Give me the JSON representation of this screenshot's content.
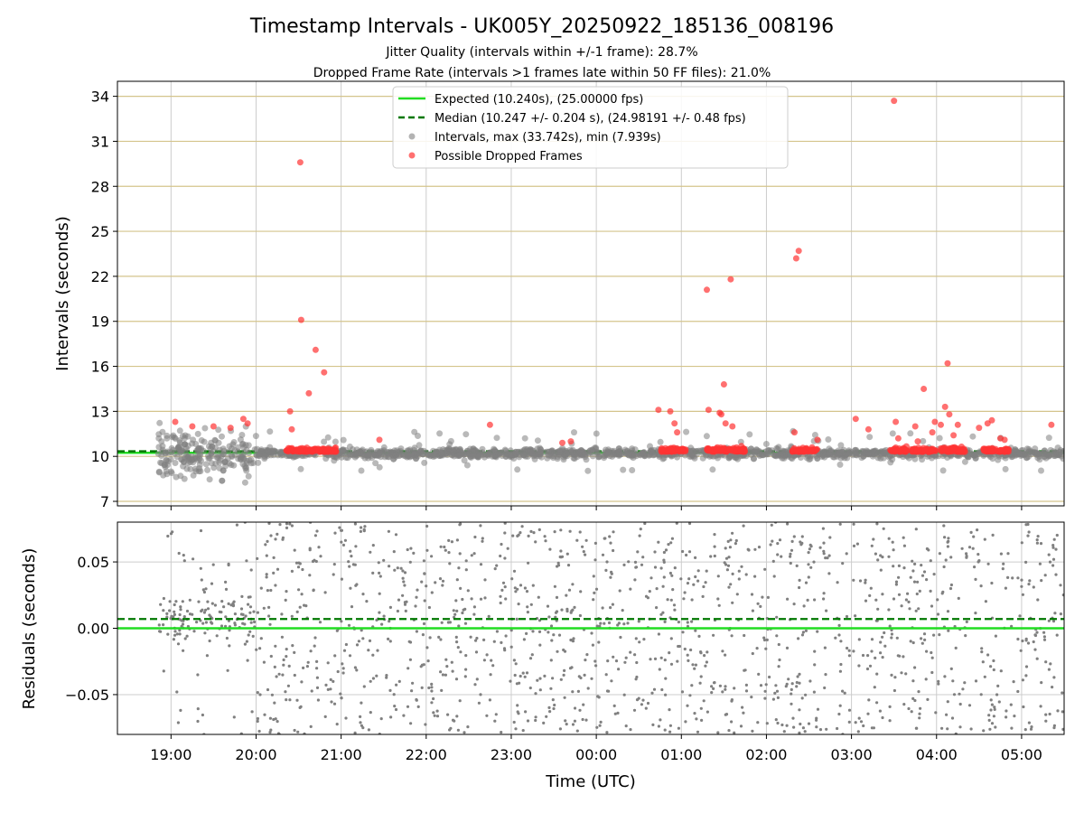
{
  "chart_data": [
    {
      "type": "scatter",
      "title": "Timestamp Intervals - UK005Y_20250922_185136_008196",
      "subtitle_lines": [
        "Jitter Quality (intervals within +/-1 frame): 28.7%",
        "Dropped Frame Rate (intervals >1 frames late within 50 FF files): 21.0%"
      ],
      "ylabel": "Intervals (seconds)",
      "ylim": [
        6.7,
        35.0
      ],
      "yticks": [
        7,
        10,
        13,
        16,
        19,
        22,
        25,
        28,
        31,
        34
      ],
      "ytick_labels": [
        "7",
        "10",
        "13",
        "16",
        "19",
        "22",
        "25",
        "28",
        "31",
        "34"
      ],
      "xlim_hours": [
        18.37,
        29.5
      ],
      "grid": true,
      "legend_position": "top-center",
      "expected_interval": 10.24,
      "median_interval": 10.247,
      "legend": [
        {
          "label": "Expected (10.240s), (25.00000 fps)",
          "kind": "solid-line",
          "color": "#22dd22"
        },
        {
          "label": "Median (10.247 +/- 0.204 s), (24.98191 +/- 0.48 fps)",
          "kind": "dashed-line",
          "color": "#007700"
        },
        {
          "label": "Intervals, max (33.742s), min (7.939s)",
          "kind": "dot",
          "color": "#808080"
        },
        {
          "label": "Possible Dropped Frames",
          "kind": "dot",
          "color": "#ff3333"
        }
      ],
      "series": [
        {
          "name": "Intervals, max (33.742s), min (7.939s)",
          "color": "#808080",
          "description": "dense band of intervals around 10.2 s from 18:50 to 05:30 UTC, wider scatter 8-12 s before 20:00"
        },
        {
          "name": "Possible Dropped Frames",
          "color": "#ff3333",
          "points": [
            [
              20.52,
              29.6
            ],
            [
              20.53,
              19.1
            ],
            [
              20.62,
              14.2
            ],
            [
              20.7,
              17.1
            ],
            [
              20.8,
              15.6
            ],
            [
              20.4,
              13.0
            ],
            [
              20.42,
              11.8
            ],
            [
              19.05,
              12.3
            ],
            [
              19.25,
              12.0
            ],
            [
              19.5,
              12.0
            ],
            [
              19.7,
              11.9
            ],
            [
              19.85,
              12.5
            ],
            [
              19.9,
              12.2
            ],
            [
              21.45,
              11.1
            ],
            [
              22.75,
              12.1
            ],
            [
              23.6,
              10.9
            ],
            [
              23.7,
              11.0
            ],
            [
              24.73,
              13.1
            ],
            [
              24.87,
              13.0
            ],
            [
              24.92,
              12.2
            ],
            [
              24.95,
              11.6
            ],
            [
              25.3,
              21.1
            ],
            [
              25.32,
              13.1
            ],
            [
              25.45,
              12.9
            ],
            [
              25.47,
              12.8
            ],
            [
              25.5,
              14.8
            ],
            [
              25.52,
              12.2
            ],
            [
              25.58,
              21.8
            ],
            [
              25.6,
              12.0
            ],
            [
              26.35,
              23.2
            ],
            [
              26.38,
              23.7
            ],
            [
              26.33,
              11.6
            ],
            [
              26.6,
              11.1
            ],
            [
              27.05,
              12.5
            ],
            [
              27.2,
              11.8
            ],
            [
              27.5,
              33.7
            ],
            [
              27.52,
              12.3
            ],
            [
              27.55,
              11.2
            ],
            [
              27.75,
              12.0
            ],
            [
              27.78,
              11.0
            ],
            [
              27.85,
              14.5
            ],
            [
              27.95,
              11.6
            ],
            [
              27.98,
              12.3
            ],
            [
              28.05,
              12.1
            ],
            [
              28.1,
              13.3
            ],
            [
              28.13,
              16.2
            ],
            [
              28.15,
              12.8
            ],
            [
              28.2,
              11.4
            ],
            [
              28.25,
              12.1
            ],
            [
              28.5,
              11.9
            ],
            [
              28.6,
              12.2
            ],
            [
              28.65,
              12.4
            ],
            [
              28.75,
              11.2
            ],
            [
              28.8,
              11.1
            ],
            [
              29.35,
              12.1
            ]
          ],
          "clusters": [
            [
              20.35,
              20.95
            ],
            [
              24.75,
              25.05
            ],
            [
              25.3,
              25.75
            ],
            [
              26.3,
              26.6
            ],
            [
              27.45,
              27.65
            ],
            [
              27.7,
              28.0
            ],
            [
              28.05,
              28.35
            ],
            [
              28.55,
              28.85
            ]
          ]
        }
      ]
    },
    {
      "type": "scatter",
      "xlabel": "Time (UTC)",
      "ylabel": "Residuals (seconds)",
      "ylim": [
        -0.08,
        0.08
      ],
      "yticks": [
        -0.05,
        0.0,
        0.05
      ],
      "ytick_labels": [
        "−0.05",
        "0.00",
        "0.05"
      ],
      "xlim_hours": [
        18.37,
        29.5
      ],
      "xticks_hours": [
        19,
        20,
        21,
        22,
        23,
        24,
        25,
        26,
        27,
        28,
        29
      ],
      "xtick_labels": [
        "19:00",
        "20:00",
        "21:00",
        "22:00",
        "23:00",
        "00:00",
        "01:00",
        "02:00",
        "03:00",
        "04:00",
        "05:00"
      ],
      "grid": true,
      "expected_line": 0.0,
      "median_line": 0.007,
      "series": [
        {
          "name": "Residuals",
          "color": "#808080",
          "description": "residuals spread uniformly between -0.08 and 0.08 s, concentrated near 0.01 s between 18:50 and 20:00"
        }
      ]
    }
  ],
  "colors": {
    "interval_dot": "#808080",
    "dropped_dot": "#ff3333",
    "expected_line": "#22dd22",
    "median_line": "#007700",
    "upper_gridline": "#d4c48c",
    "gridline": "#cccccc"
  }
}
